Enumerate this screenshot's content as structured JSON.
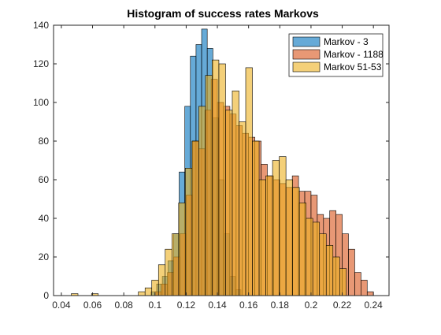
{
  "chart_data": {
    "type": "bar",
    "title": "Histogram of success rates Markovs",
    "xlabel": "",
    "ylabel": "",
    "xlim": [
      0.035,
      0.25
    ],
    "ylim": [
      0,
      140
    ],
    "xticks": [
      0.04,
      0.06,
      0.08,
      0.1,
      0.12,
      0.14,
      0.16,
      0.18,
      0.2,
      0.22,
      0.24
    ],
    "xtick_labels": [
      "0.04",
      "0.06",
      "0.08",
      "0.1",
      "0.12",
      "0.14",
      "0.16",
      "0.18",
      "0.2",
      "0.22",
      "0.24"
    ],
    "yticks": [
      0,
      20,
      40,
      60,
      80,
      100,
      120,
      140
    ],
    "ytick_labels": [
      "0",
      "20",
      "40",
      "60",
      "80",
      "100",
      "120",
      "140"
    ],
    "grid": false,
    "legend_position": "top-right",
    "series": [
      {
        "name": "Markov - 3",
        "color": "#0072BD",
        "bin_width": 0.0036,
        "x": [
          0.0993,
          0.1029,
          0.1065,
          0.1101,
          0.1137,
          0.1173,
          0.1209,
          0.1245,
          0.1281,
          0.1317,
          0.1353,
          0.1389,
          0.1425,
          0.1461,
          0.1497,
          0.1533
        ],
        "values": [
          2,
          6,
          10,
          18,
          32,
          64,
          98,
          124,
          130,
          138,
          128,
          92,
          60,
          32,
          10,
          3
        ]
      },
      {
        "name": "Markov - 1188",
        "color": "#D95319",
        "bin_width": 0.004,
        "x": [
          0.102,
          0.106,
          0.11,
          0.114,
          0.118,
          0.122,
          0.126,
          0.13,
          0.134,
          0.138,
          0.142,
          0.146,
          0.15,
          0.154,
          0.158,
          0.162,
          0.166,
          0.17,
          0.174,
          0.178,
          0.182,
          0.186,
          0.19,
          0.194,
          0.198,
          0.202,
          0.206,
          0.21,
          0.214,
          0.218,
          0.222,
          0.226,
          0.23,
          0.234,
          0.238
        ],
        "values": [
          2,
          6,
          12,
          20,
          32,
          52,
          80,
          76,
          96,
          112,
          100,
          98,
          94,
          88,
          84,
          82,
          80,
          68,
          62,
          60,
          58,
          56,
          62,
          54,
          54,
          52,
          42,
          40,
          44,
          42,
          32,
          24,
          12,
          8,
          2
        ]
      },
      {
        "name": "Markov 51-53",
        "color": "#EDB120",
        "bin_width": 0.0043,
        "x": [
          0.0485,
          0.0615,
          0.0915,
          0.0958,
          0.1001,
          0.1044,
          0.1087,
          0.113,
          0.1173,
          0.1216,
          0.1259,
          0.1302,
          0.1345,
          0.1388,
          0.1431,
          0.1474,
          0.1517,
          0.156,
          0.1603,
          0.1646,
          0.1689,
          0.1732,
          0.1775,
          0.1818,
          0.1861,
          0.1904,
          0.1947,
          0.199,
          0.2033,
          0.2076,
          0.2119,
          0.2162,
          0.2205
        ],
        "values": [
          1,
          1,
          2,
          4,
          8,
          16,
          24,
          32,
          48,
          66,
          80,
          98,
          114,
          122,
          120,
          96,
          106,
          90,
          118,
          80,
          60,
          62,
          70,
          72,
          60,
          56,
          48,
          40,
          38,
          32,
          26,
          20,
          14
        ]
      }
    ]
  }
}
